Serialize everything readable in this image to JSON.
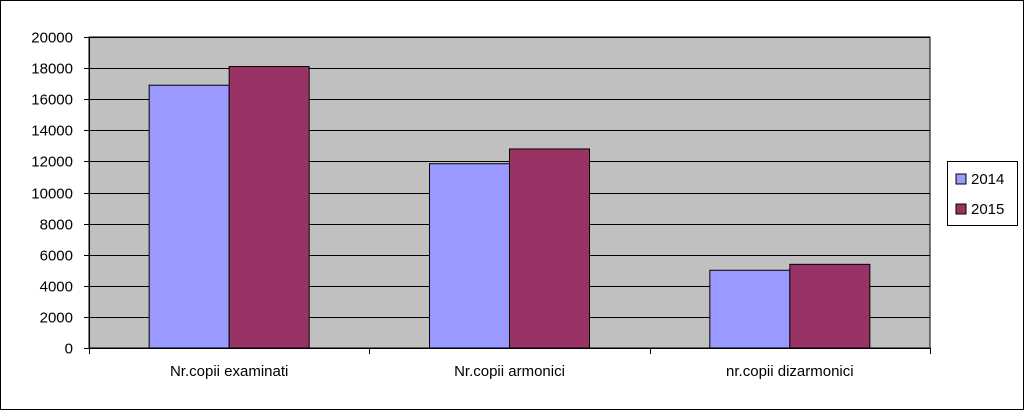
{
  "chart_data": {
    "type": "bar",
    "title": "",
    "xlabel": "",
    "ylabel": "",
    "categories": [
      "Nr.copii examinati",
      "Nr.copii armonici",
      "nr.copii dizarmonici"
    ],
    "series": [
      {
        "name": "2014",
        "values": [
          16900,
          11850,
          5000
        ]
      },
      {
        "name": "2015",
        "values": [
          18100,
          12800,
          5380
        ]
      }
    ],
    "ylim": [
      0,
      20000
    ],
    "yticks": [
      "0",
      "2000",
      "4000",
      "6000",
      "8000",
      "10000",
      "12000",
      "14000",
      "16000",
      "18000",
      "20000"
    ],
    "grid": true,
    "legend_position": "right",
    "colors": {
      "plot_background": "#c0c0c0",
      "series": [
        "#9999ff",
        "#993366"
      ],
      "gridline": "#000000",
      "border": "#000000"
    }
  }
}
